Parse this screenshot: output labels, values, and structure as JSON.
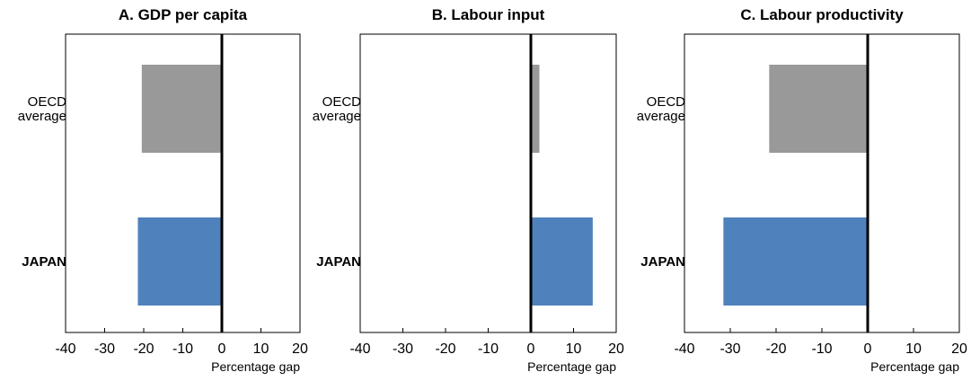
{
  "chart_data": [
    {
      "type": "bar",
      "orientation": "horizontal",
      "title": "A. GDP per capita",
      "categories": [
        "OECD average",
        "JAPAN"
      ],
      "values": [
        -20.5,
        -21.5
      ],
      "colors": [
        "#999999",
        "#4f81bd"
      ],
      "xlabel": "Percentage gap",
      "xlim": [
        -40,
        20
      ],
      "xticks": [
        "-40",
        "-30",
        "-20",
        "-10",
        "0",
        "10",
        "20"
      ],
      "grid": false
    },
    {
      "type": "bar",
      "orientation": "horizontal",
      "title": "B. Labour input",
      "categories": [
        "OECD average",
        "JAPAN"
      ],
      "values": [
        2,
        14.5
      ],
      "colors": [
        "#999999",
        "#4f81bd"
      ],
      "xlabel": "Percentage gap",
      "xlim": [
        -40,
        20
      ],
      "xticks": [
        "-40",
        "-30",
        "-20",
        "-10",
        "0",
        "10",
        "20"
      ],
      "grid": false
    },
    {
      "type": "bar",
      "orientation": "horizontal",
      "title": "C. Labour productivity",
      "categories": [
        "OECD average",
        "JAPAN"
      ],
      "values": [
        -21.5,
        -31.5
      ],
      "colors": [
        "#999999",
        "#4f81bd"
      ],
      "xlabel": "Percentage gap",
      "xlim": [
        -40,
        20
      ],
      "xticks": [
        "-40",
        "-30",
        "-20",
        "-10",
        "0",
        "10",
        "20"
      ],
      "grid": false
    }
  ],
  "category_display": {
    "OECD average": [
      "OECD",
      "average"
    ],
    "JAPAN": [
      "JAPAN"
    ]
  }
}
